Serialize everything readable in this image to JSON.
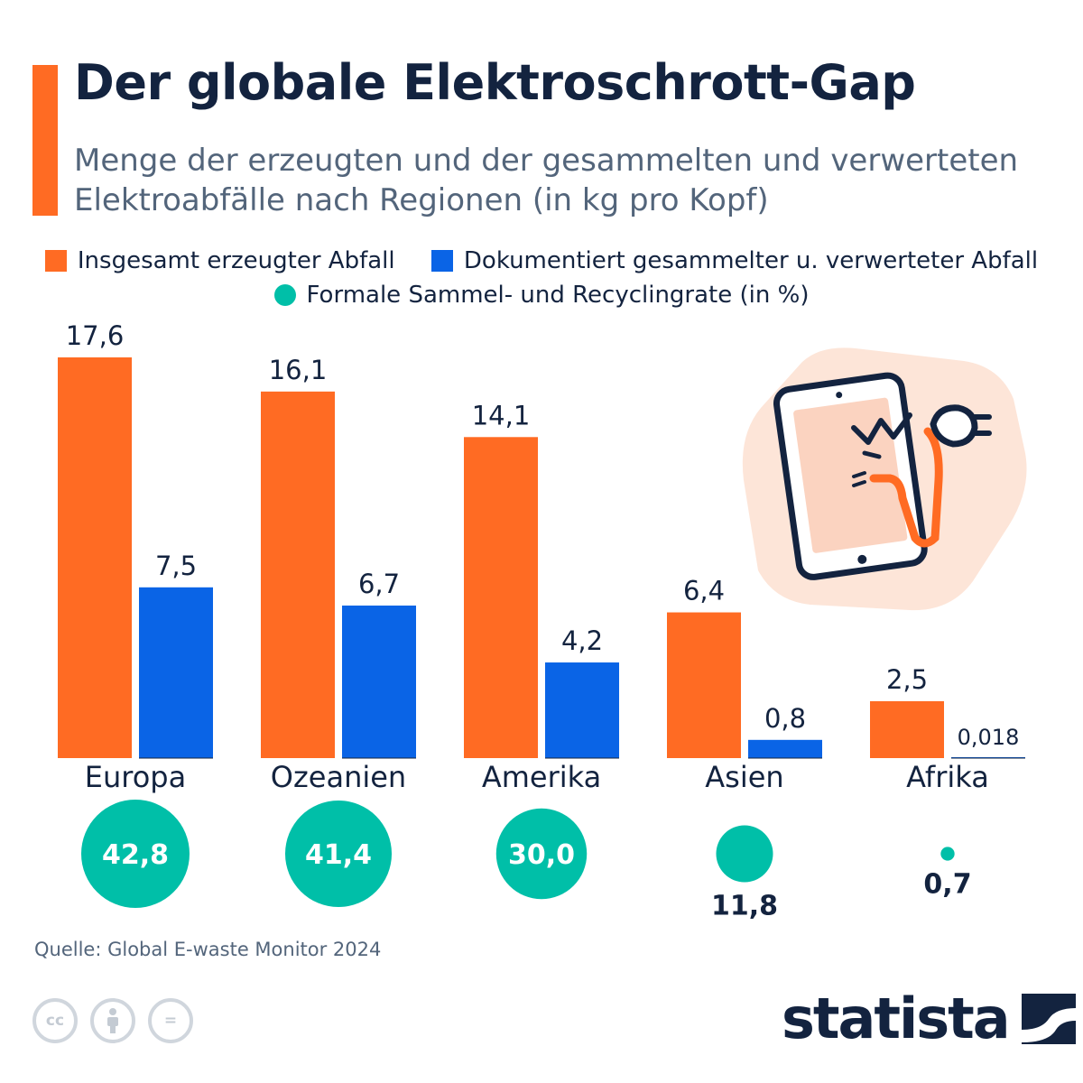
{
  "header": {
    "title": "Der globale Elektroschrott-Gap",
    "subtitle": "Menge der erzeugten und der gesammelten und verwerteten Elektroabfälle nach Regionen (in kg pro Kopf)"
  },
  "colors": {
    "accent": "#ff6b23",
    "generated": "#ff6b23",
    "collected": "#0a64e6",
    "rate": "#00bfa8",
    "text": "#13233f"
  },
  "chart_data": {
    "type": "bar",
    "categories": [
      "Europa",
      "Ozeanien",
      "Amerika",
      "Asien",
      "Afrika"
    ],
    "series": [
      {
        "name": "Insgesamt erzeugter Abfall",
        "values": [
          17.6,
          16.1,
          14.1,
          6.4,
          2.5
        ],
        "labels": [
          "17,6",
          "16,1",
          "14,1",
          "6,4",
          "2,5"
        ]
      },
      {
        "name": "Dokumentiert gesammelter u. verwerteter Abfall",
        "values": [
          7.5,
          6.7,
          4.2,
          0.8,
          0.018
        ],
        "labels": [
          "7,5",
          "6,7",
          "4,2",
          "0,8",
          "0,018"
        ]
      }
    ],
    "rate_series": {
      "name": "Formale Sammel- und Recyclingrate (in %)",
      "values": [
        42.8,
        41.4,
        30.0,
        11.8,
        0.7
      ],
      "labels": [
        "42,8",
        "41,4",
        "30,0",
        "11,8",
        "0,7"
      ]
    },
    "ylim": [
      0,
      17.6
    ],
    "grid": false,
    "legend_placement": "top-center"
  },
  "footer": {
    "source": "Quelle: Global E-waste Monitor 2024",
    "brand": "statista",
    "license_icons": [
      "cc-icon",
      "attribution-icon",
      "no-derivatives-icon"
    ],
    "license_glyphs": [
      "cc",
      "",
      "="
    ]
  }
}
